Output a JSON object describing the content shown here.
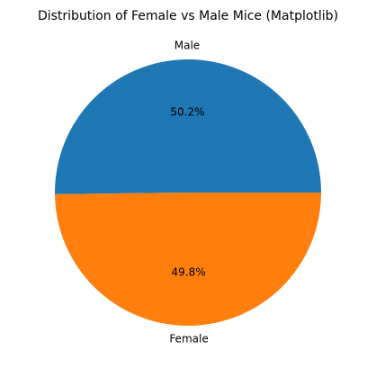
{
  "chart_data": {
    "type": "pie",
    "title": "Distribution of Female vs Male Mice (Matplotlib)",
    "labels": [
      "Male",
      "Female"
    ],
    "values": [
      50.2,
      49.8
    ],
    "autopct": [
      "50.2%",
      "49.8%"
    ],
    "colors": [
      "#1f77b4",
      "#ff7f0e"
    ],
    "start_angle": 0,
    "direction": "counterclockwise"
  }
}
